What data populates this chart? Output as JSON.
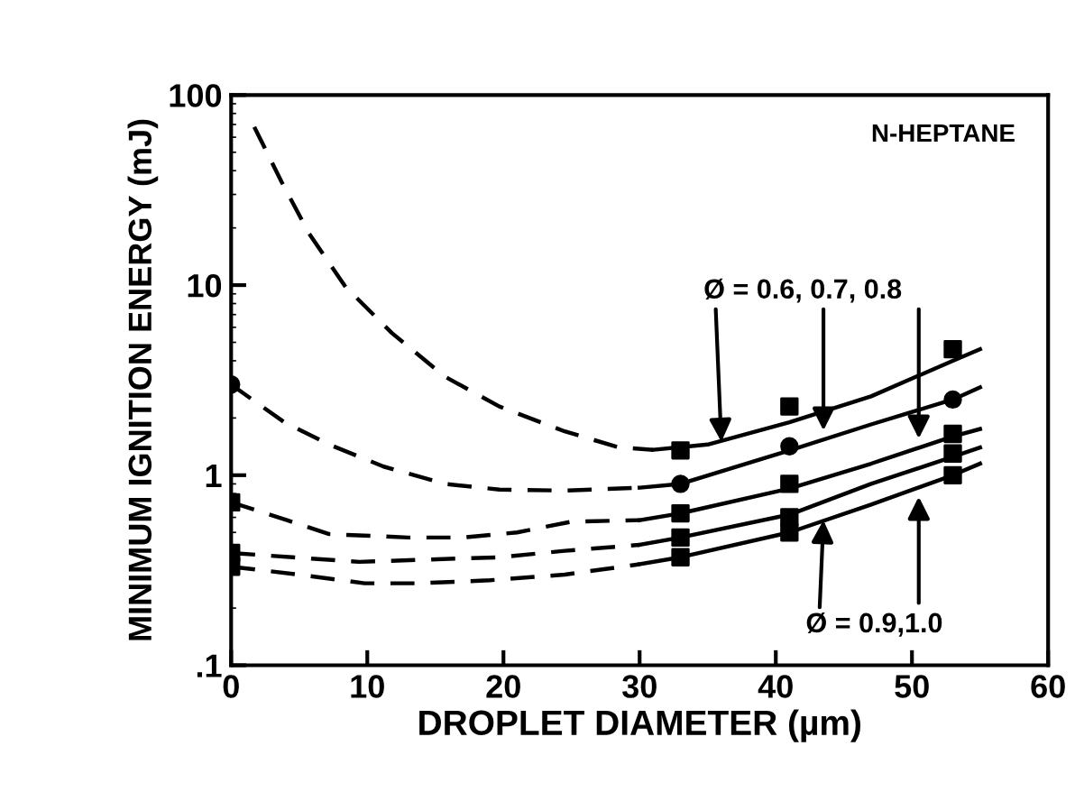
{
  "chart_data": {
    "type": "line",
    "xlabel": "DROPLET DIAMETER (µm)",
    "ylabel": "MINIMUM IGNITION ENERGY (mJ)",
    "log": "y",
    "xlim": [
      0,
      60
    ],
    "xticks": [
      0,
      10,
      20,
      30,
      40,
      50,
      60
    ],
    "ylim": [
      0.1,
      100
    ],
    "yticks": [
      {
        "value": 0.1,
        "label": ".1"
      },
      1,
      10,
      100
    ],
    "grid": false,
    "annotations": [
      "N-HEPTANE",
      {
        "text": "Ø = 0.6, 0.7, 0.8",
        "x": 36,
        "y": 1.5
      },
      {
        "text": "Ø = 0.9,1.0",
        "x": 43.5,
        "y": 0.58
      }
    ],
    "series": [
      {
        "line_style": "dashed",
        "color": "#000000",
        "x": [
          1.7,
          3.7,
          5.7,
          8.4,
          11.8,
          15.7,
          19.7,
          24.5,
          28.5,
          31
        ],
        "values": [
          68,
          35,
          18.8,
          9.8,
          5.6,
          3.3,
          2.3,
          1.7,
          1.4,
          1.36
        ]
      },
      {
        "line_style": "solid",
        "color": "#000000",
        "x": [
          31,
          35,
          41,
          47,
          53,
          55
        ],
        "values": [
          1.36,
          1.45,
          1.9,
          2.6,
          4.0,
          4.6
        ]
      },
      {
        "type": "scatter",
        "marker": "square",
        "color": "#000000",
        "x": [
          33,
          41,
          53
        ],
        "values": [
          1.35,
          2.3,
          4.6
        ]
      },
      {
        "line_style": "dashed",
        "color": "#000000",
        "x": [
          0,
          3.9,
          7.2,
          11.2,
          15.7,
          19.7,
          24.5,
          30
        ],
        "values": [
          3.0,
          1.9,
          1.45,
          1.11,
          0.9,
          0.84,
          0.83,
          0.86
        ]
      },
      {
        "line_style": "solid",
        "color": "#000000",
        "x": [
          30,
          33,
          41,
          47,
          53,
          55
        ],
        "values": [
          0.86,
          0.9,
          1.35,
          1.85,
          2.5,
          2.9
        ]
      },
      {
        "type": "scatter",
        "marker": "circle",
        "color": "#000000",
        "x": [
          0,
          33,
          41,
          53
        ],
        "values": [
          3.0,
          0.9,
          1.42,
          2.5
        ]
      },
      {
        "line_style": "dashed",
        "color": "#000000",
        "x": [
          0,
          4.1,
          7.2,
          13,
          17,
          21,
          25,
          30
        ],
        "values": [
          0.72,
          0.58,
          0.49,
          0.47,
          0.47,
          0.5,
          0.57,
          0.58
        ]
      },
      {
        "line_style": "solid",
        "color": "#000000",
        "x": [
          30,
          33,
          41,
          47,
          53,
          55
        ],
        "values": [
          0.58,
          0.63,
          0.85,
          1.15,
          1.6,
          1.75
        ]
      },
      {
        "type": "scatter",
        "marker": "square",
        "color": "#000000",
        "x": [
          0,
          33,
          41,
          53
        ],
        "values": [
          0.72,
          0.63,
          0.9,
          1.65
        ]
      },
      {
        "line_style": "dashed",
        "color": "#000000",
        "x": [
          0,
          4.5,
          9.4,
          14.4,
          19.7,
          24.5,
          30
        ],
        "values": [
          0.39,
          0.37,
          0.35,
          0.36,
          0.37,
          0.4,
          0.43
        ]
      },
      {
        "line_style": "solid",
        "color": "#000000",
        "x": [
          30,
          33,
          41,
          47,
          53,
          55
        ],
        "values": [
          0.43,
          0.47,
          0.62,
          0.9,
          1.25,
          1.4
        ]
      },
      {
        "type": "scatter",
        "marker": "square",
        "color": "#000000",
        "x": [
          0,
          33,
          41,
          53
        ],
        "values": [
          0.39,
          0.47,
          0.6,
          1.3
        ]
      },
      {
        "line_style": "dashed",
        "color": "#000000",
        "x": [
          0,
          5,
          9.8,
          13.8,
          19,
          24.5,
          30
        ],
        "values": [
          0.33,
          0.3,
          0.27,
          0.27,
          0.28,
          0.3,
          0.34
        ]
      },
      {
        "line_style": "solid",
        "color": "#000000",
        "x": [
          30,
          33,
          41,
          47,
          53,
          55
        ],
        "values": [
          0.34,
          0.37,
          0.5,
          0.7,
          1.0,
          1.15
        ]
      },
      {
        "type": "scatter",
        "marker": "square",
        "color": "#000000",
        "x": [
          0,
          33,
          41,
          53
        ],
        "values": [
          0.33,
          0.37,
          0.5,
          1.0
        ]
      }
    ]
  }
}
